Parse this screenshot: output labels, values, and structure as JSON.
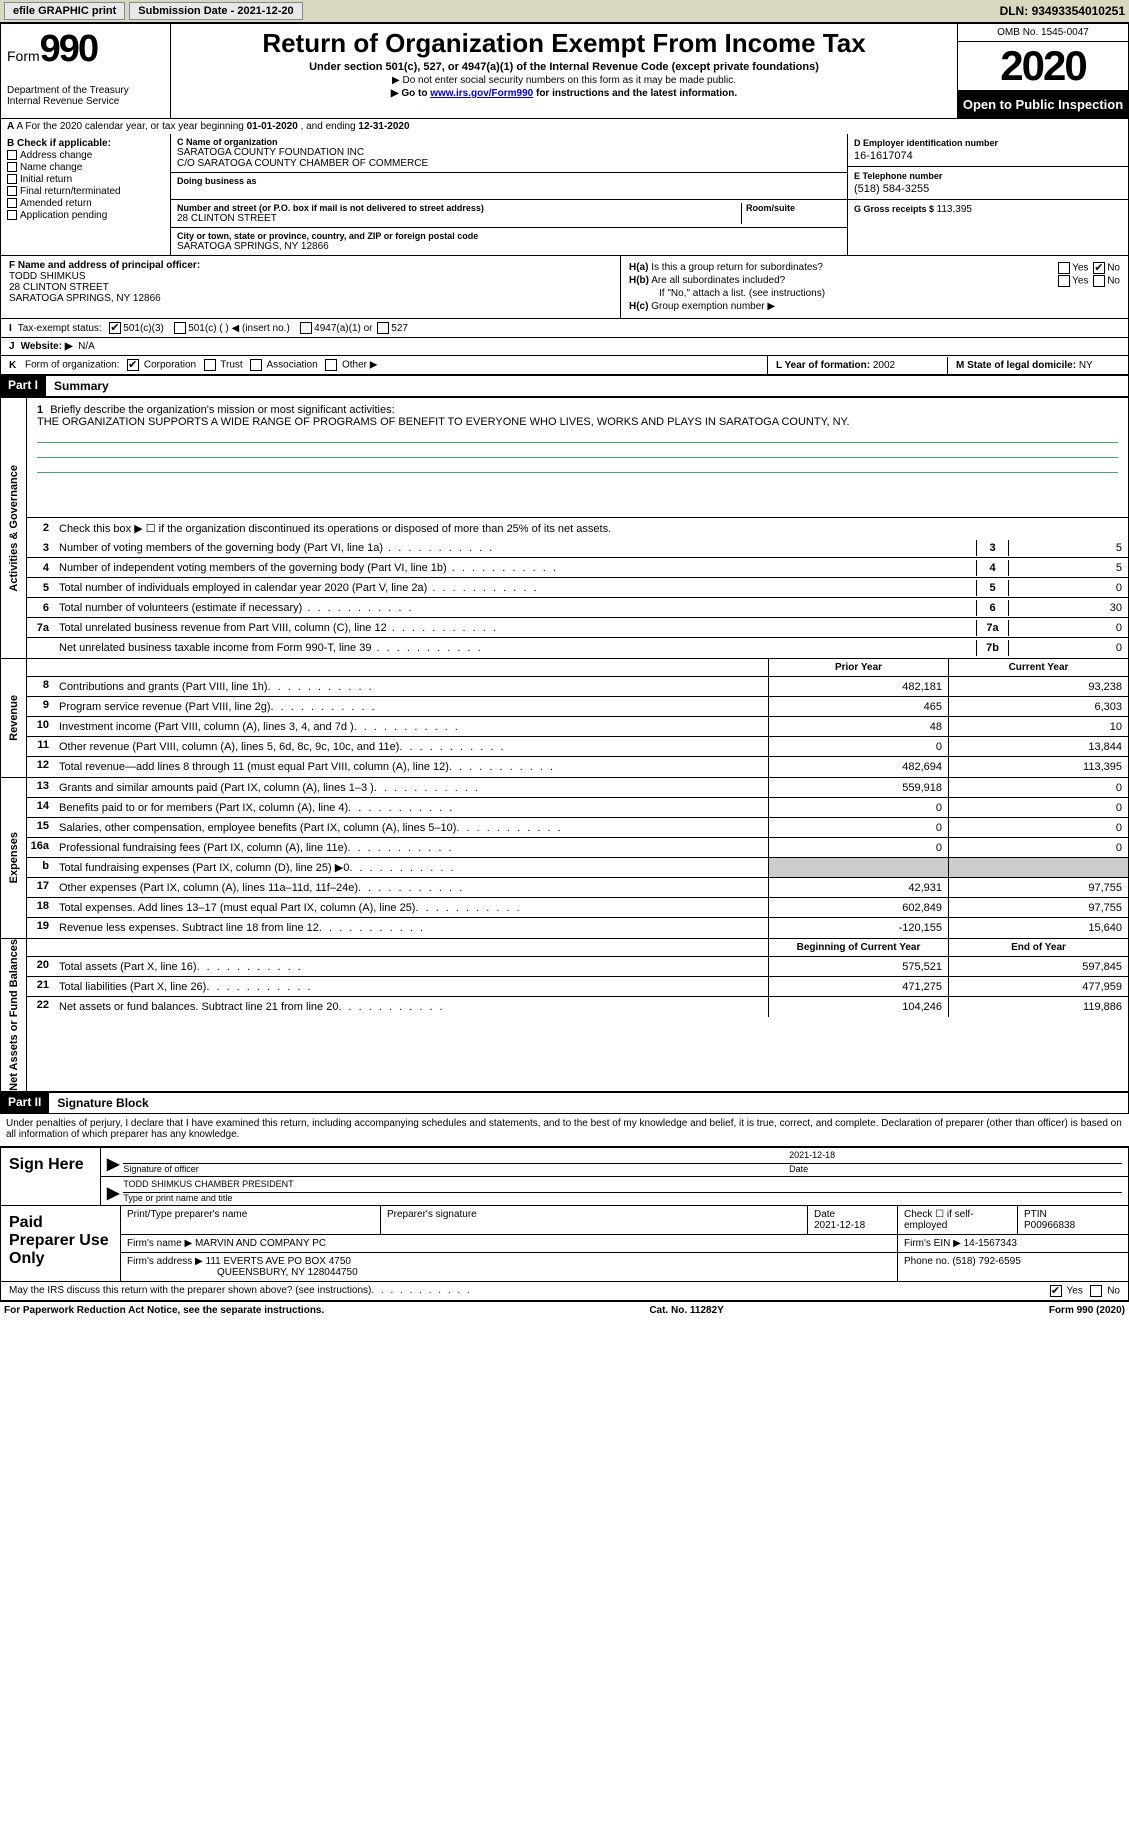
{
  "top": {
    "efile": "efile GRAPHIC print",
    "submission_label": "Submission Date - ",
    "submission_value": "2021-12-20",
    "dln_label": "DLN: ",
    "dln_value": "93493354010251"
  },
  "header": {
    "form_label": "Form",
    "form_number": "990",
    "title": "Return of Organization Exempt From Income Tax",
    "subtitle": "Under section 501(c), 527, or 4947(a)(1) of the Internal Revenue Code (except private foundations)",
    "notice1": "▶ Do not enter social security numbers on this form as it may be made public.",
    "notice2_pre": "▶ Go to ",
    "notice2_link": "www.irs.gov/Form990",
    "notice2_post": " for instructions and the latest information.",
    "dept1": "Department of the Treasury",
    "dept2": "Internal Revenue Service",
    "omb": "OMB No. 1545-0047",
    "year": "2020",
    "open_pub": "Open to Public Inspection"
  },
  "line_a": {
    "pre": "A For the 2020 calendar year, or tax year beginning ",
    "begin": "01-01-2020",
    "mid": " , and ending ",
    "end": "12-31-2020"
  },
  "col_b": {
    "header": "B Check if applicable:",
    "items": [
      "Address change",
      "Name change",
      "Initial return",
      "Final return/terminated",
      "Amended return",
      "Application pending"
    ]
  },
  "col_c": {
    "name_lbl": "C Name of organization",
    "name1": "SARATOGA COUNTY FOUNDATION INC",
    "name2": "C/O SARATOGA COUNTY CHAMBER OF COMMERCE",
    "dba_lbl": "Doing business as",
    "addr_lbl": "Number and street (or P.O. box if mail is not delivered to street address)",
    "addr_val": "28 CLINTON STREET",
    "room_lbl": "Room/suite",
    "city_lbl": "City or town, state or province, country, and ZIP or foreign postal code",
    "city_val": "SARATOGA SPRINGS, NY  12866"
  },
  "col_de": {
    "d_lbl": "D Employer identification number",
    "d_val": "16-1617074",
    "e_lbl": "E Telephone number",
    "e_val": "(518) 584-3255",
    "g_lbl": "G Gross receipts $ ",
    "g_val": "113,395"
  },
  "col_f": {
    "lbl": "F Name and address of principal officer:",
    "name": "TODD SHIMKUS",
    "addr1": "28 CLINTON STREET",
    "addr2": "SARATOGA SPRINGS, NY  12866"
  },
  "col_h": {
    "ha_lbl": "H(a)",
    "ha_txt": "Is this a group return for subordinates?",
    "hb_lbl": "H(b)",
    "hb_txt": "Are all subordinates included?",
    "note": "If \"No,\" attach a list. (see instructions)",
    "hc_lbl": "H(c)",
    "hc_txt": "Group exemption number ▶",
    "yes": "Yes",
    "no": "No"
  },
  "row_i": {
    "lead": "I",
    "lbl": "Tax-exempt status:",
    "opt1": "501(c)(3)",
    "opt2": "501(c) (   ) ◀ (insert no.)",
    "opt3": "4947(a)(1) or",
    "opt4": "527"
  },
  "row_j": {
    "lead": "J",
    "lbl": "Website: ▶",
    "val": "N/A"
  },
  "row_k": {
    "lead": "K",
    "lbl": "Form of organization:",
    "opts": [
      "Corporation",
      "Trust",
      "Association",
      "Other ▶"
    ],
    "l_lbl": "L Year of formation: ",
    "l_val": "2002",
    "m_lbl": "M State of legal domicile: ",
    "m_val": "NY"
  },
  "part1": {
    "num": "Part I",
    "title": "Summary"
  },
  "gov": {
    "vtab": "Activities & Governance",
    "l1_n": "1",
    "l1_t": "Briefly describe the organization's mission or most significant activities:",
    "l1_desc": "THE ORGANIZATION SUPPORTS A WIDE RANGE OF PROGRAMS OF BENEFIT TO EVERYONE WHO LIVES, WORKS AND PLAYS IN SARATOGA COUNTY, NY.",
    "l2_n": "2",
    "l2_t": "Check this box ▶ ☐ if the organization discontinued its operations or disposed of more than 25% of its net assets.",
    "rows": [
      {
        "n": "3",
        "t": "Number of voting members of the governing body (Part VI, line 1a)",
        "b": "3",
        "v": "5"
      },
      {
        "n": "4",
        "t": "Number of independent voting members of the governing body (Part VI, line 1b)",
        "b": "4",
        "v": "5"
      },
      {
        "n": "5",
        "t": "Total number of individuals employed in calendar year 2020 (Part V, line 2a)",
        "b": "5",
        "v": "0"
      },
      {
        "n": "6",
        "t": "Total number of volunteers (estimate if necessary)",
        "b": "6",
        "v": "30"
      },
      {
        "n": "7a",
        "t": "Total unrelated business revenue from Part VIII, column (C), line 12",
        "b": "7a",
        "v": "0"
      },
      {
        "n": "",
        "t": "Net unrelated business taxable income from Form 990-T, line 39",
        "b": "7b",
        "v": "0"
      }
    ]
  },
  "cols": {
    "prior": "Prior Year",
    "current": "Current Year",
    "begin": "Beginning of Current Year",
    "end": "End of Year"
  },
  "revenue": {
    "vtab": "Revenue",
    "rows": [
      {
        "n": "8",
        "t": "Contributions and grants (Part VIII, line 1h)",
        "p": "482,181",
        "c": "93,238"
      },
      {
        "n": "9",
        "t": "Program service revenue (Part VIII, line 2g)",
        "p": "465",
        "c": "6,303"
      },
      {
        "n": "10",
        "t": "Investment income (Part VIII, column (A), lines 3, 4, and 7d )",
        "p": "48",
        "c": "10"
      },
      {
        "n": "11",
        "t": "Other revenue (Part VIII, column (A), lines 5, 6d, 8c, 9c, 10c, and 11e)",
        "p": "0",
        "c": "13,844"
      },
      {
        "n": "12",
        "t": "Total revenue—add lines 8 through 11 (must equal Part VIII, column (A), line 12)",
        "p": "482,694",
        "c": "113,395"
      }
    ]
  },
  "expenses": {
    "vtab": "Expenses",
    "rows": [
      {
        "n": "13",
        "t": "Grants and similar amounts paid (Part IX, column (A), lines 1–3 )",
        "p": "559,918",
        "c": "0"
      },
      {
        "n": "14",
        "t": "Benefits paid to or for members (Part IX, column (A), line 4)",
        "p": "0",
        "c": "0"
      },
      {
        "n": "15",
        "t": "Salaries, other compensation, employee benefits (Part IX, column (A), lines 5–10)",
        "p": "0",
        "c": "0"
      },
      {
        "n": "16a",
        "t": "Professional fundraising fees (Part IX, column (A), line 11e)",
        "p": "0",
        "c": "0"
      },
      {
        "n": "b",
        "t": "Total fundraising expenses (Part IX, column (D), line 25) ▶0",
        "p": "",
        "c": "",
        "grey": true
      },
      {
        "n": "17",
        "t": "Other expenses (Part IX, column (A), lines 11a–11d, 11f–24e)",
        "p": "42,931",
        "c": "97,755"
      },
      {
        "n": "18",
        "t": "Total expenses. Add lines 13–17 (must equal Part IX, column (A), line 25)",
        "p": "602,849",
        "c": "97,755"
      },
      {
        "n": "19",
        "t": "Revenue less expenses. Subtract line 18 from line 12",
        "p": "-120,155",
        "c": "15,640"
      }
    ]
  },
  "netassets": {
    "vtab": "Net Assets or Fund Balances",
    "rows": [
      {
        "n": "20",
        "t": "Total assets (Part X, line 16)",
        "p": "575,521",
        "c": "597,845"
      },
      {
        "n": "21",
        "t": "Total liabilities (Part X, line 26)",
        "p": "471,275",
        "c": "477,959"
      },
      {
        "n": "22",
        "t": "Net assets or fund balances. Subtract line 21 from line 20",
        "p": "104,246",
        "c": "119,886"
      }
    ]
  },
  "part2": {
    "num": "Part II",
    "title": "Signature Block"
  },
  "sig": {
    "penalty": "Under penalties of perjury, I declare that I have examined this return, including accompanying schedules and statements, and to the best of my knowledge and belief, it is true, correct, and complete. Declaration of preparer (other than officer) is based on all information of which preparer has any knowledge.",
    "sign_here": "Sign Here",
    "sig_officer_lbl": "Signature of officer",
    "date_lbl": "Date",
    "sig_date": "2021-12-18",
    "name_title": "TODD SHIMKUS  CHAMBER PRESIDENT",
    "name_title_lbl": "Type or print name and title"
  },
  "prep": {
    "title": "Paid Preparer Use Only",
    "h_name": "Print/Type preparer's name",
    "h_sig": "Preparer's signature",
    "h_date": "Date",
    "h_date_v": "2021-12-18",
    "h_check": "Check ☐ if self-employed",
    "h_ptin": "PTIN",
    "h_ptin_v": "P00966838",
    "firm_name_lbl": "Firm's name    ▶ ",
    "firm_name": "MARVIN AND COMPANY PC",
    "firm_ein_lbl": "Firm's EIN ▶ ",
    "firm_ein": "14-1567343",
    "firm_addr_lbl": "Firm's address ▶ ",
    "firm_addr1": "111 EVERTS AVE PO BOX 4750",
    "firm_addr2": "QUEENSBURY, NY  128044750",
    "phone_lbl": "Phone no. ",
    "phone": "(518) 792-6595"
  },
  "discuss": {
    "q": "May the IRS discuss this return with the preparer shown above? (see instructions)",
    "yes": "Yes",
    "no": "No"
  },
  "footer": {
    "left": "For Paperwork Reduction Act Notice, see the separate instructions.",
    "mid": "Cat. No. 11282Y",
    "right": "Form 990 (2020)"
  }
}
